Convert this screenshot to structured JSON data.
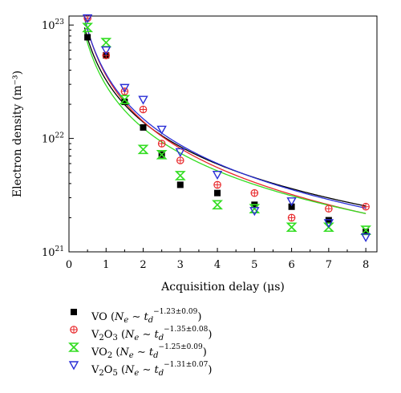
{
  "chart_data": {
    "type": "scatter",
    "xlabel": "Acquisition delay (μs)",
    "ylabel": "Electron density (m⁻³)",
    "xlim": [
      0,
      8.3
    ],
    "ylim": [
      1e+21,
      1.2e+23
    ],
    "yscale": "log",
    "x_ticks": [
      0,
      1,
      2,
      3,
      4,
      5,
      6,
      7,
      8
    ],
    "x_tick_labels": [
      "0",
      "1",
      "2",
      "3",
      "4",
      "5",
      "6",
      "7",
      "8"
    ],
    "y_ticks": [
      1e+21,
      1e+22,
      1e+23
    ],
    "y_tick_labels": [
      {
        "base": "10",
        "exp": "21"
      },
      {
        "base": "10",
        "exp": "22"
      },
      {
        "base": "10",
        "exp": "23"
      }
    ],
    "legend_position": "below",
    "series": [
      {
        "name": "VO",
        "formula": [
          "VO"
        ],
        "exponent": "−1.23±0.09",
        "marker": "square",
        "color": "#000000",
        "fit_color": "#000000",
        "fit_coefficient": 3.27e+22,
        "fit_exponent": -1.23,
        "x": [
          0.5,
          1,
          1.5,
          2,
          2.5,
          3,
          4,
          5,
          6,
          7,
          8
        ],
        "y": [
          7.8e+22,
          5.4e+22,
          2.1e+22,
          1.25e+22,
          7.2e+21,
          3.9e+21,
          3.3e+21,
          2.6e+21,
          2.5e+21,
          1.9e+21,
          1.5e+21
        ]
      },
      {
        "name": "V2O3",
        "formula": [
          "V",
          "2",
          "O",
          "3"
        ],
        "exponent": "−1.35±0.08",
        "marker": "circle-cross",
        "color": "#e8282b",
        "fit_color": "#e8282b",
        "fit_coefficient": 3.6e+22,
        "fit_exponent": -1.35,
        "x": [
          0.5,
          1,
          1.5,
          2,
          2.5,
          3,
          4,
          5,
          6,
          7,
          8
        ],
        "y": [
          1.15e+23,
          5.4e+22,
          2.6e+22,
          1.8e+22,
          9e+21,
          6.4e+21,
          3.9e+21,
          3.3e+21,
          2e+21,
          2.4e+21,
          2.5e+21
        ]
      },
      {
        "name": "VO2",
        "formula": [
          "VO",
          "2"
        ],
        "exponent": "−1.25±0.09",
        "marker": "bowtie",
        "color": "#33dd22",
        "fit_color": "#33dd22",
        "fit_coefficient": 2.93e+22,
        "fit_exponent": -1.25,
        "x": [
          0.5,
          1,
          1.5,
          2,
          2.5,
          3,
          4,
          5,
          6,
          7,
          8
        ],
        "y": [
          9.5e+22,
          7e+22,
          2.2e+22,
          8e+21,
          7.2e+21,
          4.7e+21,
          2.6e+21,
          2.4e+21,
          1.65e+21,
          1.65e+21,
          1.55e+21
        ]
      },
      {
        "name": "V2O5",
        "formula": [
          "V",
          "2",
          "O",
          "5"
        ],
        "exponent": "−1.31±0.07",
        "marker": "triangle-down",
        "color": "#2a2fd6",
        "fit_color": "#2a2fd6",
        "fit_coefficient": 3.7e+22,
        "fit_exponent": -1.31,
        "x": [
          0.5,
          1,
          1.5,
          2,
          2.5,
          3,
          4,
          5,
          6,
          7,
          8
        ],
        "y": [
          1.15e+23,
          6e+22,
          2.8e+22,
          2.2e+22,
          1.2e+22,
          7.6e+21,
          4.8e+21,
          2.3e+21,
          2.8e+21,
          1.8e+21,
          1.35e+21
        ]
      }
    ]
  }
}
